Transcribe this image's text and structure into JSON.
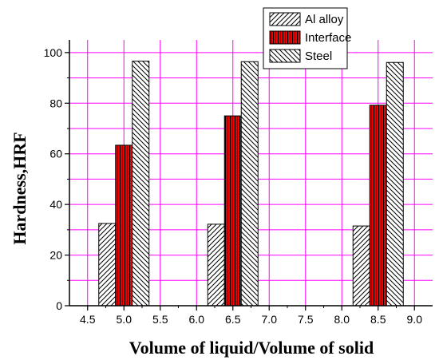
{
  "chart_data": {
    "type": "bar",
    "xlabel": "Volume of liquid/Volume of solid",
    "ylabel": "Hardness,HRF",
    "xlim": [
      4.25,
      9.25
    ],
    "ylim": [
      0,
      105
    ],
    "x_ticks": [
      4.5,
      5.0,
      5.5,
      6.0,
      6.5,
      7.0,
      7.5,
      8.0,
      8.5,
      9.0
    ],
    "x_tick_labels": [
      "4.5",
      "5.0",
      "5.5",
      "6.0",
      "6.5",
      "7.0",
      "7.5",
      "8.0",
      "8.5",
      "9.0"
    ],
    "y_ticks": [
      0,
      20,
      40,
      60,
      80,
      100
    ],
    "y_tick_labels": [
      "0",
      "20",
      "40",
      "60",
      "80",
      "100"
    ],
    "grid": true,
    "legend_position": "top-right",
    "categories": [
      5.0,
      6.5,
      8.5
    ],
    "series": [
      {
        "name": "Al alloy",
        "values": [
          32.5,
          32.2,
          31.5
        ],
        "fill": "#ffffff",
        "pattern": "diag-forward"
      },
      {
        "name": "Interface",
        "values": [
          63.4,
          75.0,
          79.2
        ],
        "fill": "#ee0000",
        "pattern": "vertical"
      },
      {
        "name": "Steel",
        "values": [
          96.6,
          96.4,
          96.1
        ],
        "fill": "#ffffff",
        "pattern": "diag-back"
      }
    ],
    "colors": {
      "grid": "#ff00ff",
      "axis": "#000000",
      "interface": "#ee0000"
    }
  }
}
